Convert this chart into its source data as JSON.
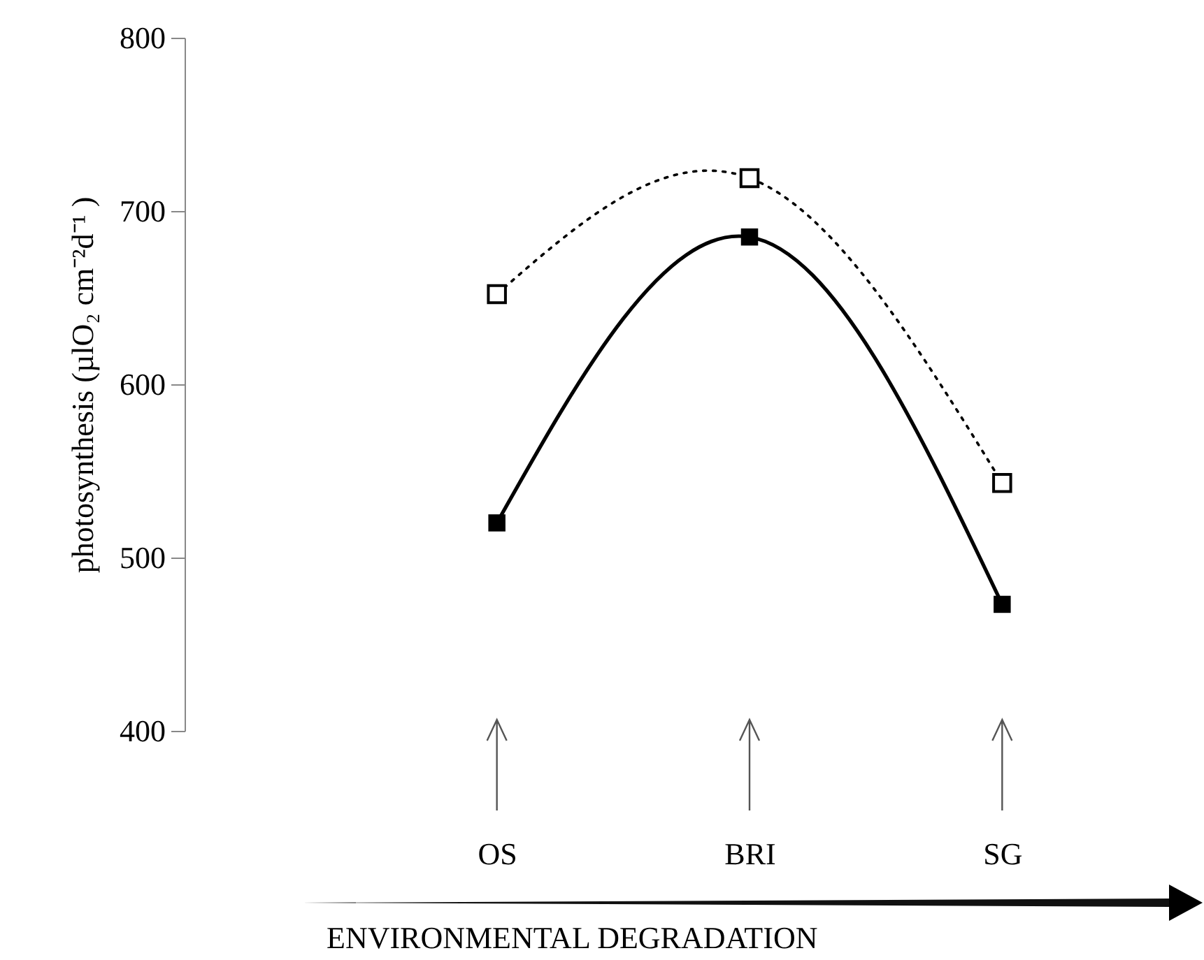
{
  "chart_data": {
    "type": "line",
    "xlabel": "ENVIRONMENTAL DEGRADATION",
    "ylabel": "photosynthesis (µlO₂ cm⁻²d⁻¹ )",
    "categories": [
      "OS",
      "BRI",
      "SG"
    ],
    "series": [
      {
        "color": "#000000",
        "values": [
          520,
          685,
          473
        ],
        "line_style": "solid"
      },
      {
        "color": "#000000",
        "values": [
          652,
          719,
          543
        ],
        "line_style": "dotted"
      }
    ],
    "ylim": [
      400,
      800
    ],
    "yticks": [
      400,
      500,
      600,
      700,
      800
    ],
    "marker": "square"
  }
}
